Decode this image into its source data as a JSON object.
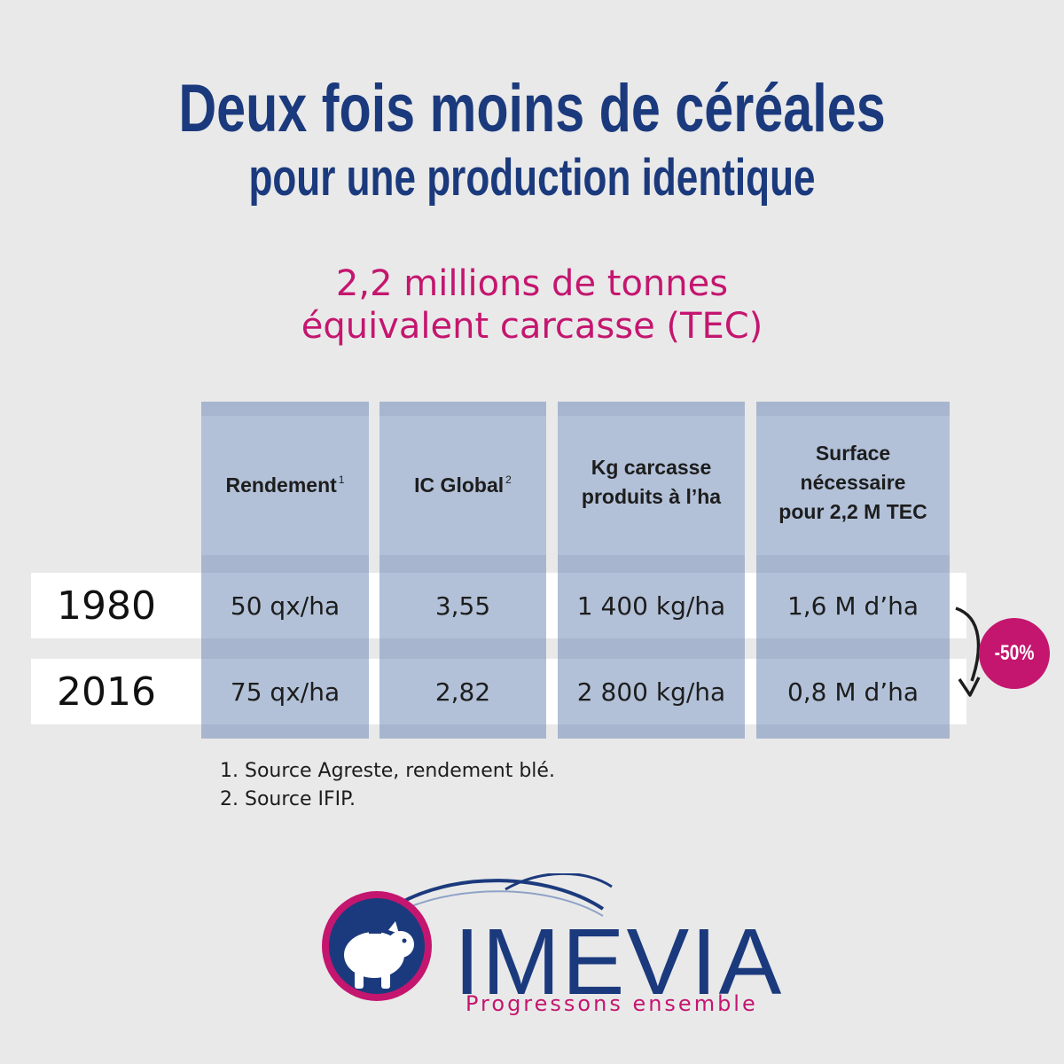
{
  "heading": {
    "title": "Deux fois moins de céréales",
    "subtitle": "pour une production identique",
    "highlight_line1": "2,2 millions de tonnes",
    "highlight_line2": "équivalent carcasse (TEC)"
  },
  "table": {
    "columns": [
      {
        "lines": [
          "Rendement"
        ],
        "sup": "1"
      },
      {
        "lines": [
          "IC Global"
        ],
        "sup": "2"
      },
      {
        "lines": [
          "Kg carcasse",
          "produits à l’ha"
        ],
        "sup": ""
      },
      {
        "lines": [
          "Surface",
          "nécessaire",
          "pour 2,2 M TEC"
        ],
        "sup": ""
      }
    ],
    "rows": [
      {
        "year": "1980",
        "values": [
          "50 qx/ha",
          "3,55",
          "1 400 kg/ha",
          "1,6 M d’ha"
        ]
      },
      {
        "year": "2016",
        "values": [
          "75 qx/ha",
          "2,82",
          "2 800 kg/ha",
          "0,8 M d’ha"
        ]
      }
    ]
  },
  "change_badge": "-50%",
  "footnotes": [
    "1.  Source Agreste, rendement blé.",
    "2.  Source IFIP."
  ],
  "logo": {
    "name": "IMEVIA",
    "tagline": "Progressons ensemble",
    "icon": "piggy-bank-icon"
  },
  "colors": {
    "navy": "#1b3a7d",
    "magenta": "#c4166f",
    "column": "#b2c1d8",
    "background": "#e9e9e9"
  }
}
